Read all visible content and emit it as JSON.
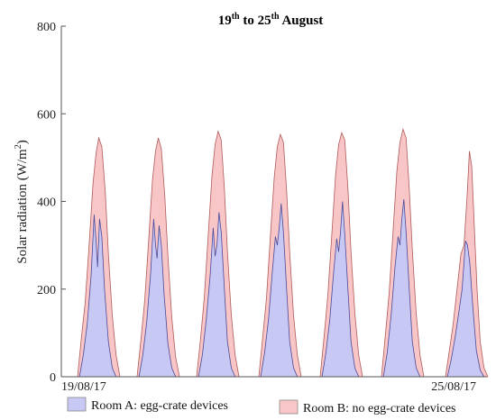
{
  "chart_data": {
    "type": "area",
    "title": {
      "pre1": "19",
      "sup1": "th",
      "mid": " to 25",
      "sup2": "th",
      "post": " August"
    },
    "ylabel": {
      "pre": "Solar radiation (W/m",
      "sup": "2",
      "post": ")"
    },
    "ylim": [
      0,
      800
    ],
    "yticks": [
      "0",
      "200",
      "400",
      "600",
      "800"
    ],
    "x_tick_labels": {
      "start": "19/08/17",
      "end": "25/08/17"
    },
    "grid": false,
    "legend_position": "bottom",
    "series": [
      {
        "name": "Room B: no egg-crate devices",
        "color": "#f8c6c6",
        "days": [
          [
            [
              6,
              0
            ],
            [
              7,
              90
            ],
            [
              8,
              170
            ],
            [
              9,
              300
            ],
            [
              10,
              440
            ],
            [
              10.8,
              510
            ],
            [
              11.5,
              545
            ],
            [
              12.3,
              525
            ],
            [
              13.2,
              420
            ],
            [
              14,
              280
            ],
            [
              15,
              140
            ],
            [
              16,
              50
            ],
            [
              17,
              0
            ]
          ],
          [
            [
              6,
              0
            ],
            [
              7,
              85
            ],
            [
              8,
              175
            ],
            [
              9,
              310
            ],
            [
              10,
              450
            ],
            [
              10.8,
              515
            ],
            [
              11.5,
              545
            ],
            [
              12.3,
              520
            ],
            [
              13.2,
              410
            ],
            [
              14,
              275
            ],
            [
              15,
              135
            ],
            [
              16,
              45
            ],
            [
              17,
              0
            ]
          ],
          [
            [
              6,
              0
            ],
            [
              7,
              85
            ],
            [
              8,
              180
            ],
            [
              9,
              320
            ],
            [
              10,
              460
            ],
            [
              10.8,
              530
            ],
            [
              11.6,
              560
            ],
            [
              12.4,
              540
            ],
            [
              13.2,
              430
            ],
            [
              14,
              285
            ],
            [
              15,
              140
            ],
            [
              16,
              50
            ],
            [
              17,
              0
            ]
          ],
          [
            [
              6,
              0
            ],
            [
              7,
              90
            ],
            [
              8,
              180
            ],
            [
              9,
              320
            ],
            [
              10,
              455
            ],
            [
              10.8,
              525
            ],
            [
              11.6,
              553
            ],
            [
              12.4,
              535
            ],
            [
              13.2,
              425
            ],
            [
              14,
              285
            ],
            [
              15,
              140
            ],
            [
              16,
              50
            ],
            [
              17,
              0
            ]
          ],
          [
            [
              6,
              0
            ],
            [
              7,
              90
            ],
            [
              8,
              185
            ],
            [
              9,
              320
            ],
            [
              10,
              460
            ],
            [
              10.8,
              530
            ],
            [
              11.6,
              557
            ],
            [
              12.4,
              540
            ],
            [
              13.2,
              430
            ],
            [
              14,
              285
            ],
            [
              15,
              145
            ],
            [
              16,
              50
            ],
            [
              17,
              0
            ]
          ],
          [
            [
              6,
              0
            ],
            [
              7,
              95
            ],
            [
              8,
              190
            ],
            [
              9,
              330
            ],
            [
              10,
              470
            ],
            [
              10.8,
              535
            ],
            [
              11.6,
              565
            ],
            [
              12.4,
              545
            ],
            [
              13.2,
              430
            ],
            [
              14,
              290
            ],
            [
              15,
              145
            ],
            [
              16,
              50
            ],
            [
              17,
              0
            ]
          ],
          [
            [
              6,
              0
            ],
            [
              7,
              60
            ],
            [
              8,
              120
            ],
            [
              9,
              200
            ],
            [
              10,
              280
            ],
            [
              10.8,
              300
            ],
            [
              11.6,
              410
            ],
            [
              12.2,
              515
            ],
            [
              12.8,
              480
            ],
            [
              13.5,
              340
            ],
            [
              14.2,
              200
            ],
            [
              15,
              80
            ],
            [
              16,
              20
            ],
            [
              17,
              0
            ]
          ]
        ]
      },
      {
        "name": "Room A: egg-crate devices",
        "color": "#c8c8f4",
        "days": [
          [
            [
              6.5,
              0
            ],
            [
              7.5,
              50
            ],
            [
              8.5,
              120
            ],
            [
              9.5,
              230
            ],
            [
              10.3,
              370
            ],
            [
              10.8,
              310
            ],
            [
              11.2,
              250
            ],
            [
              11.7,
              360
            ],
            [
              12.3,
              320
            ],
            [
              13,
              200
            ],
            [
              14,
              80
            ],
            [
              15,
              20
            ],
            [
              16,
              0
            ]
          ],
          [
            [
              6.5,
              0
            ],
            [
              7.5,
              50
            ],
            [
              8.5,
              125
            ],
            [
              9.5,
              235
            ],
            [
              10.3,
              360
            ],
            [
              10.8,
              300
            ],
            [
              11.2,
              270
            ],
            [
              11.7,
              345
            ],
            [
              12.3,
              300
            ],
            [
              13,
              190
            ],
            [
              14,
              75
            ],
            [
              15,
              20
            ],
            [
              16,
              0
            ]
          ],
          [
            [
              6.5,
              0
            ],
            [
              7.5,
              50
            ],
            [
              8.5,
              130
            ],
            [
              9.5,
              230
            ],
            [
              10.3,
              340
            ],
            [
              10.8,
              275
            ],
            [
              11.3,
              300
            ],
            [
              11.8,
              375
            ],
            [
              12.4,
              330
            ],
            [
              13.2,
              200
            ],
            [
              14,
              80
            ],
            [
              15,
              20
            ],
            [
              16,
              0
            ]
          ],
          [
            [
              6.5,
              0
            ],
            [
              7.5,
              55
            ],
            [
              8.5,
              130
            ],
            [
              9.5,
              240
            ],
            [
              10.3,
              320
            ],
            [
              10.8,
              300
            ],
            [
              11.3,
              340
            ],
            [
              11.8,
              395
            ],
            [
              12.4,
              330
            ],
            [
              13.2,
              200
            ],
            [
              14,
              80
            ],
            [
              15,
              20
            ],
            [
              16,
              0
            ]
          ],
          [
            [
              6.5,
              0
            ],
            [
              7.5,
              55
            ],
            [
              8.5,
              130
            ],
            [
              9.5,
              240
            ],
            [
              10.3,
              315
            ],
            [
              10.8,
              285
            ],
            [
              11.3,
              330
            ],
            [
              11.8,
              400
            ],
            [
              12.4,
              325
            ],
            [
              13.2,
              200
            ],
            [
              14,
              80
            ],
            [
              15,
              20
            ],
            [
              16,
              0
            ]
          ],
          [
            [
              6.5,
              0
            ],
            [
              7.5,
              55
            ],
            [
              8.5,
              140
            ],
            [
              9.5,
              250
            ],
            [
              10.3,
              320
            ],
            [
              10.8,
              300
            ],
            [
              11.3,
              360
            ],
            [
              11.8,
              405
            ],
            [
              12.4,
              330
            ],
            [
              13.2,
              200
            ],
            [
              14,
              80
            ],
            [
              15,
              20
            ],
            [
              16,
              0
            ]
          ],
          [
            [
              6.5,
              0
            ],
            [
              7.5,
              40
            ],
            [
              8.5,
              90
            ],
            [
              9.5,
              150
            ],
            [
              10.3,
              200
            ],
            [
              10.8,
              260
            ],
            [
              11.2,
              310
            ],
            [
              11.7,
              300
            ],
            [
              12.3,
              260
            ],
            [
              13,
              170
            ],
            [
              14,
              60
            ],
            [
              15,
              15
            ],
            [
              16,
              0
            ]
          ]
        ]
      }
    ]
  }
}
